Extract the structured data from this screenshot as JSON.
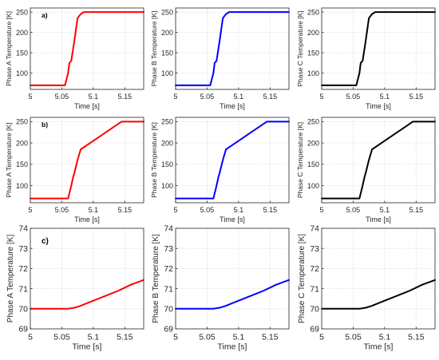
{
  "chart_data": [
    {
      "type": "line",
      "row_marker": "a)",
      "xlabel": "Time [s]",
      "ylabel": "Phase A Temperature [K]",
      "xlim": [
        5,
        5.18
      ],
      "ylim": [
        60,
        260
      ],
      "xticks": [
        5,
        5.05,
        5.1,
        5.15
      ],
      "xtick_labels": [
        "5",
        "5.05",
        "5.1",
        "5.15"
      ],
      "yticks": [
        100,
        150,
        200,
        250
      ],
      "ytick_labels": [
        "100",
        "150",
        "200",
        "250"
      ],
      "grid": true,
      "series": [
        {
          "color": "#ff0000",
          "x": [
            5,
            5.055,
            5.06,
            5.062,
            5.065,
            5.07,
            5.075,
            5.08,
            5.085,
            5.18
          ],
          "y": [
            70,
            70,
            100,
            125,
            130,
            180,
            235,
            245,
            250,
            250
          ]
        }
      ]
    },
    {
      "type": "line",
      "row_marker": "",
      "xlabel": "Time [s]",
      "ylabel": "Phase B Temperature [K]",
      "xlim": [
        5,
        5.18
      ],
      "ylim": [
        60,
        260
      ],
      "xticks": [
        5,
        5.05,
        5.1,
        5.15
      ],
      "xtick_labels": [
        "5",
        "5.05",
        "5.1",
        "5.15"
      ],
      "yticks": [
        100,
        150,
        200,
        250
      ],
      "ytick_labels": [
        "100",
        "150",
        "200",
        "250"
      ],
      "grid": true,
      "series": [
        {
          "color": "#0000ff",
          "x": [
            5,
            5.055,
            5.06,
            5.062,
            5.065,
            5.07,
            5.075,
            5.08,
            5.085,
            5.18
          ],
          "y": [
            70,
            70,
            100,
            125,
            130,
            180,
            235,
            245,
            250,
            250
          ]
        }
      ]
    },
    {
      "type": "line",
      "row_marker": "",
      "xlabel": "Time [s]",
      "ylabel": "Phase C Temperature [K]",
      "xlim": [
        5,
        5.18
      ],
      "ylim": [
        60,
        260
      ],
      "xticks": [
        5,
        5.05,
        5.1,
        5.15
      ],
      "xtick_labels": [
        "5",
        "5.05",
        "5.1",
        "5.15"
      ],
      "yticks": [
        100,
        150,
        200,
        250
      ],
      "ytick_labels": [
        "100",
        "150",
        "200",
        "250"
      ],
      "grid": true,
      "series": [
        {
          "color": "#000000",
          "x": [
            5,
            5.055,
            5.06,
            5.062,
            5.065,
            5.07,
            5.075,
            5.08,
            5.085,
            5.18
          ],
          "y": [
            70,
            70,
            100,
            125,
            130,
            180,
            235,
            245,
            250,
            250
          ]
        }
      ]
    },
    {
      "type": "line",
      "row_marker": "b)",
      "xlabel": "Time [s]",
      "ylabel": "Phase A Temperature [K]",
      "xlim": [
        5,
        5.18
      ],
      "ylim": [
        60,
        260
      ],
      "xticks": [
        5,
        5.05,
        5.1,
        5.15
      ],
      "xtick_labels": [
        "5",
        "5.05",
        "5.1",
        "5.15"
      ],
      "yticks": [
        100,
        150,
        200,
        250
      ],
      "ytick_labels": [
        "100",
        "150",
        "200",
        "250"
      ],
      "grid": true,
      "series": [
        {
          "color": "#ff0000",
          "x": [
            5,
            5.06,
            5.065,
            5.068,
            5.07,
            5.075,
            5.08,
            5.09,
            5.1,
            5.12,
            5.145,
            5.18
          ],
          "y": [
            70,
            70,
            100,
            120,
            130,
            160,
            185,
            195,
            205,
            225,
            250,
            250
          ]
        }
      ]
    },
    {
      "type": "line",
      "row_marker": "",
      "xlabel": "Time [s]",
      "ylabel": "Phase B Temperature [K]",
      "xlim": [
        5,
        5.18
      ],
      "ylim": [
        60,
        260
      ],
      "xticks": [
        5,
        5.05,
        5.1,
        5.15
      ],
      "xtick_labels": [
        "5",
        "5.05",
        "5.1",
        "5.15"
      ],
      "yticks": [
        100,
        150,
        200,
        250
      ],
      "ytick_labels": [
        "100",
        "150",
        "200",
        "250"
      ],
      "grid": true,
      "series": [
        {
          "color": "#0000ff",
          "x": [
            5,
            5.06,
            5.065,
            5.068,
            5.07,
            5.075,
            5.08,
            5.09,
            5.1,
            5.12,
            5.145,
            5.18
          ],
          "y": [
            70,
            70,
            100,
            120,
            130,
            160,
            185,
            195,
            205,
            225,
            250,
            250
          ]
        }
      ]
    },
    {
      "type": "line",
      "row_marker": "",
      "xlabel": "Time [s]",
      "ylabel": "Phase C Temperature [K]",
      "xlim": [
        5,
        5.18
      ],
      "ylim": [
        60,
        260
      ],
      "xticks": [
        5,
        5.05,
        5.1,
        5.15
      ],
      "xtick_labels": [
        "5",
        "5.05",
        "5.1",
        "5.15"
      ],
      "yticks": [
        100,
        150,
        200,
        250
      ],
      "ytick_labels": [
        "100",
        "150",
        "200",
        "250"
      ],
      "grid": true,
      "series": [
        {
          "color": "#000000",
          "x": [
            5,
            5.06,
            5.065,
            5.068,
            5.07,
            5.075,
            5.08,
            5.09,
            5.1,
            5.12,
            5.145,
            5.18
          ],
          "y": [
            70,
            70,
            100,
            120,
            130,
            160,
            185,
            195,
            205,
            225,
            250,
            250
          ]
        }
      ]
    },
    {
      "type": "line",
      "row_marker": "c)",
      "xlabel": "Time [s]",
      "ylabel": "Phase A Temperature [K]",
      "xlim": [
        5,
        5.18
      ],
      "ylim": [
        69,
        74
      ],
      "xticks": [
        5,
        5.05,
        5.1,
        5.15
      ],
      "xtick_labels": [
        "5",
        "5.05",
        "5.1",
        "5.15"
      ],
      "yticks": [
        69,
        70,
        71,
        72,
        73,
        74
      ],
      "ytick_labels": [
        "69",
        "70",
        "71",
        "72",
        "73",
        "74"
      ],
      "grid": true,
      "series": [
        {
          "color": "#ff0000",
          "x": [
            5,
            5.06,
            5.07,
            5.08,
            5.1,
            5.12,
            5.14,
            5.16,
            5.18
          ],
          "y": [
            70,
            70,
            70.05,
            70.15,
            70.4,
            70.65,
            70.9,
            71.2,
            71.43
          ]
        }
      ]
    },
    {
      "type": "line",
      "row_marker": "",
      "xlabel": "Time [s]",
      "ylabel": "Phase B Temperature [K]",
      "xlim": [
        5,
        5.18
      ],
      "ylim": [
        69,
        74
      ],
      "xticks": [
        5,
        5.05,
        5.1,
        5.15
      ],
      "xtick_labels": [
        "5",
        "5.05",
        "5.1",
        "5.15"
      ],
      "yticks": [
        69,
        70,
        71,
        72,
        73,
        74
      ],
      "ytick_labels": [
        "69",
        "70",
        "71",
        "72",
        "73",
        "74"
      ],
      "grid": true,
      "series": [
        {
          "color": "#0000ff",
          "x": [
            5,
            5.06,
            5.07,
            5.08,
            5.1,
            5.12,
            5.14,
            5.16,
            5.18
          ],
          "y": [
            70,
            70,
            70.05,
            70.15,
            70.4,
            70.65,
            70.9,
            71.2,
            71.43
          ]
        }
      ]
    },
    {
      "type": "line",
      "row_marker": "",
      "xlabel": "Time [s]",
      "ylabel": "Phase C Temperature [K]",
      "xlim": [
        5,
        5.18
      ],
      "ylim": [
        69,
        74
      ],
      "xticks": [
        5,
        5.05,
        5.1,
        5.15
      ],
      "xtick_labels": [
        "5",
        "5.05",
        "5.1",
        "5.15"
      ],
      "yticks": [
        69,
        70,
        71,
        72,
        73,
        74
      ],
      "ytick_labels": [
        "69",
        "70",
        "71",
        "72",
        "73",
        "74"
      ],
      "grid": true,
      "series": [
        {
          "color": "#000000",
          "x": [
            5,
            5.06,
            5.07,
            5.08,
            5.1,
            5.12,
            5.14,
            5.16,
            5.18
          ],
          "y": [
            70,
            70,
            70.05,
            70.15,
            70.4,
            70.65,
            70.9,
            71.2,
            71.43
          ]
        }
      ]
    }
  ]
}
